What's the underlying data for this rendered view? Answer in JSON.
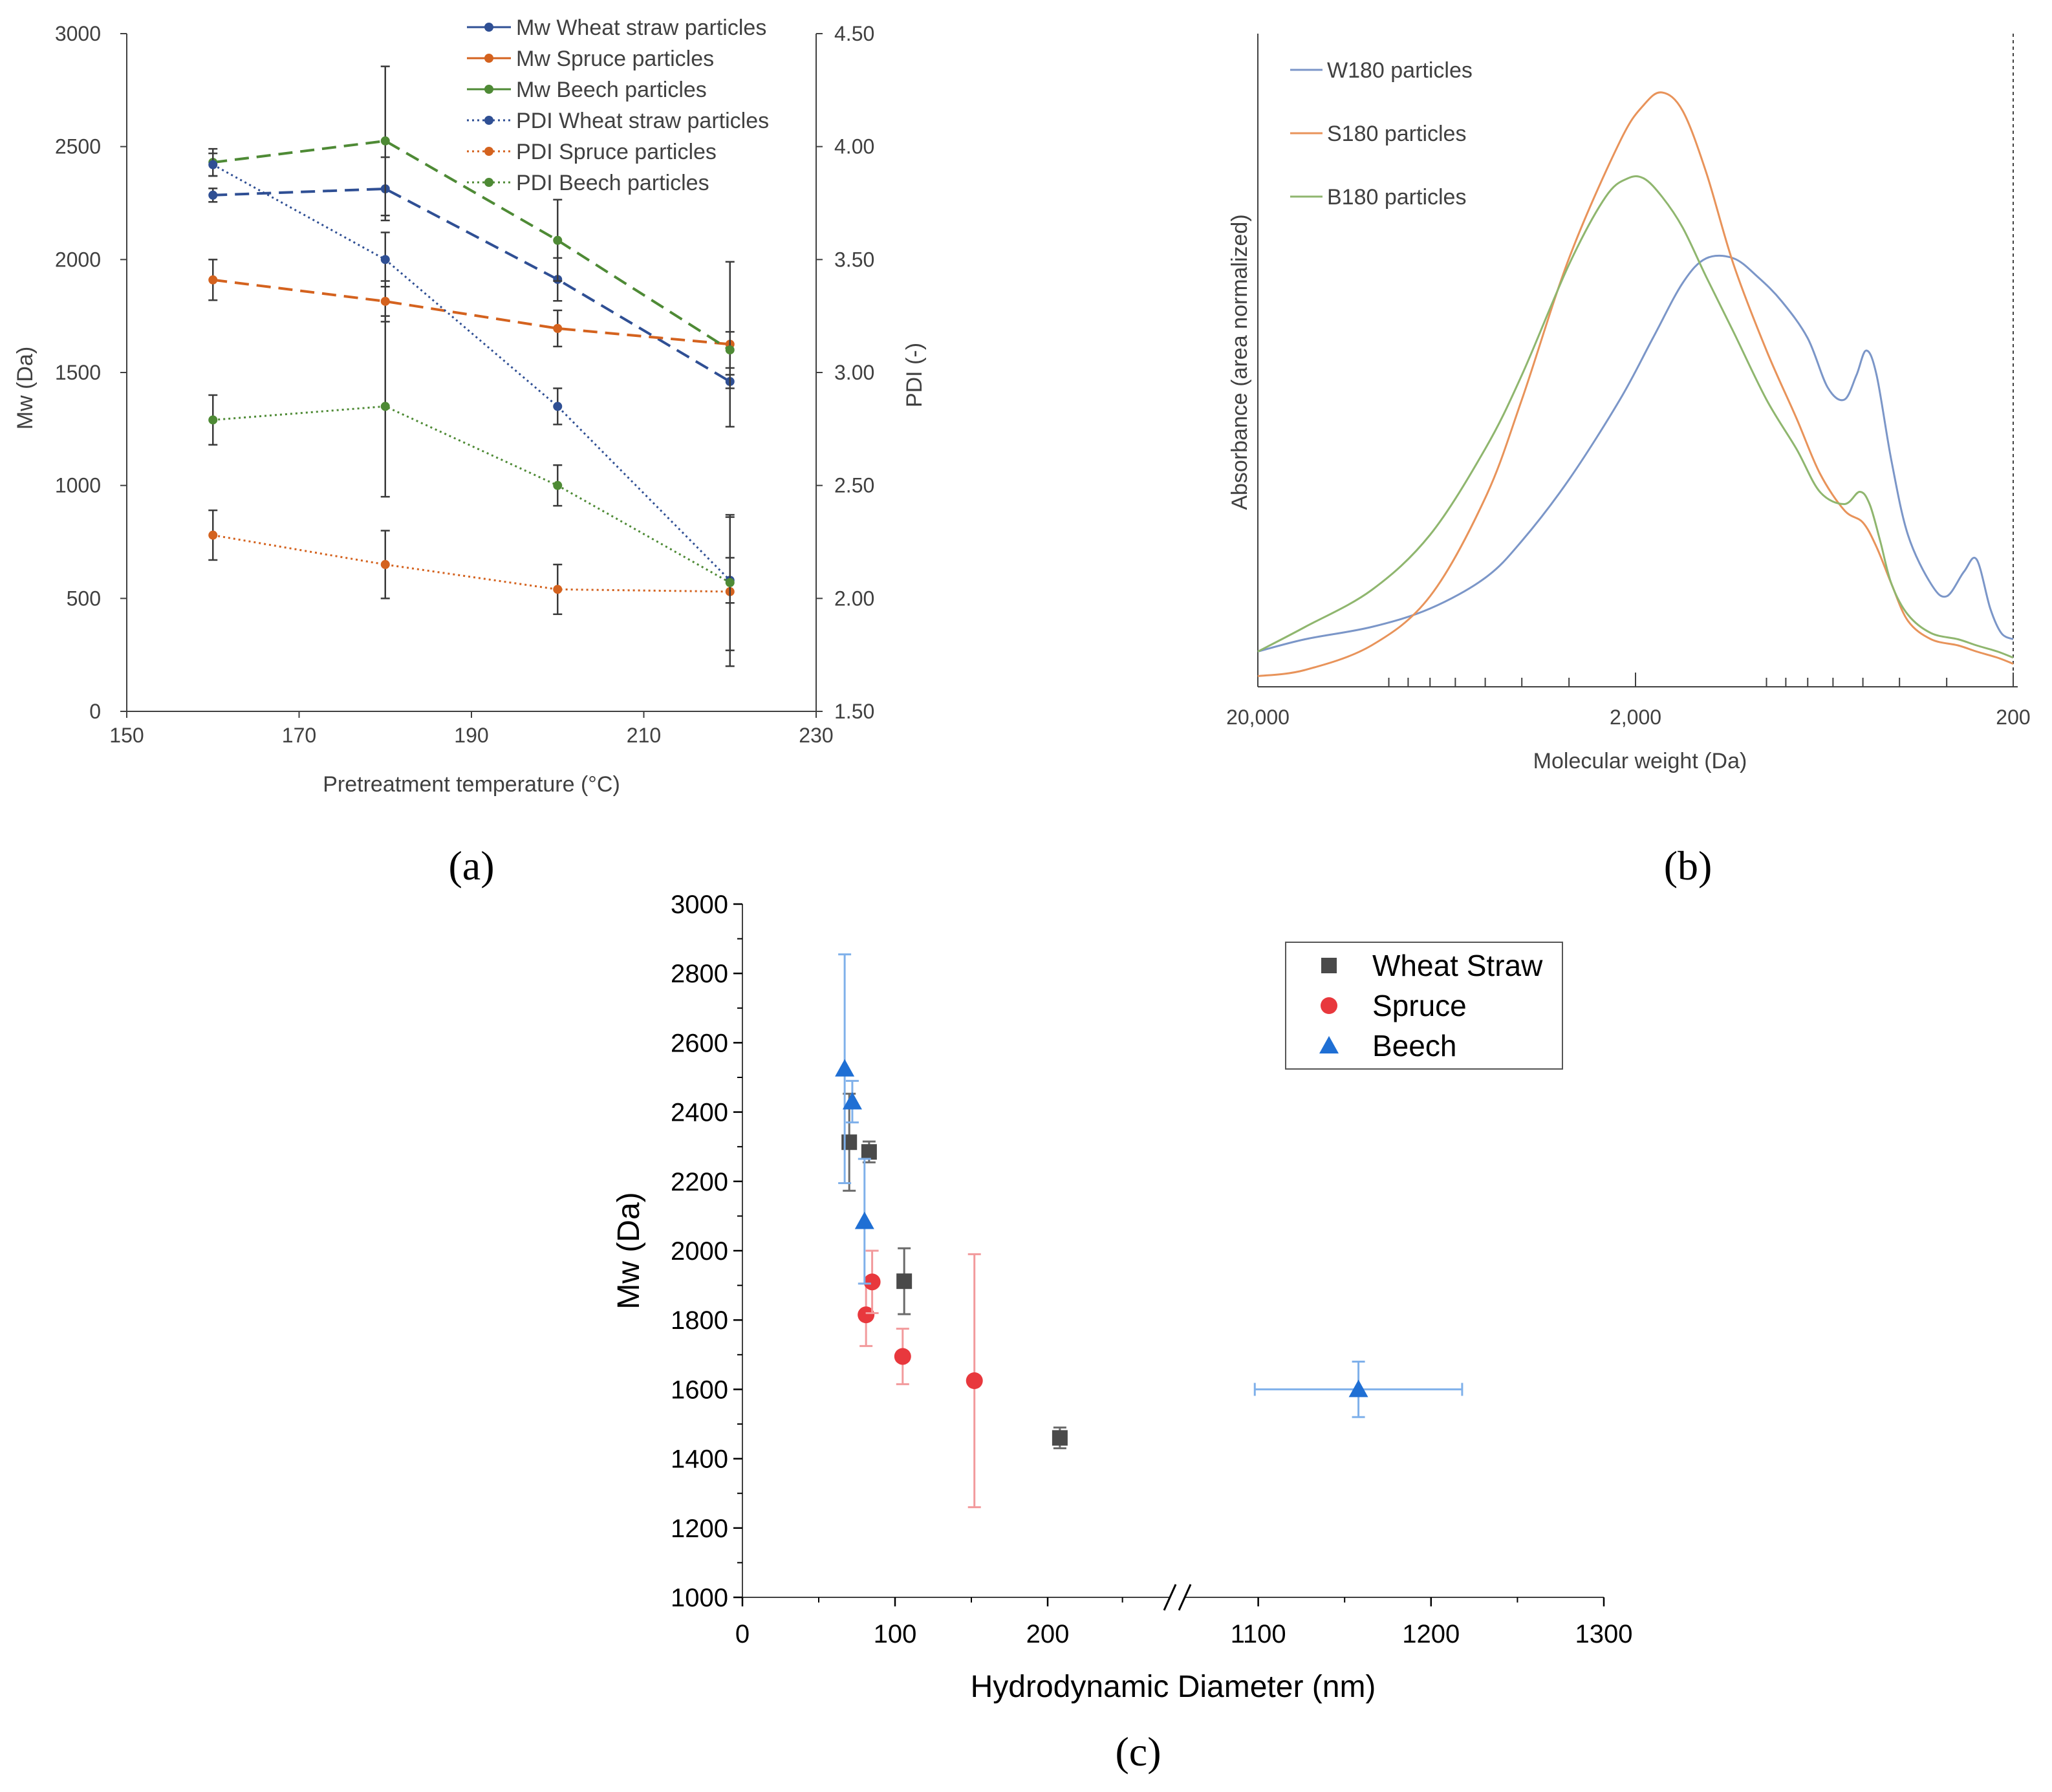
{
  "chart_data": [
    {
      "id": "a",
      "type": "line",
      "panel_label": "(a)",
      "xlabel": "Pretreatment temperature (°C)",
      "ylabel": "Mw (Da)",
      "y2label": "PDI (-)",
      "xlim": [
        150,
        230
      ],
      "ylim": [
        0,
        3000
      ],
      "y2lim": [
        1.5,
        4.5
      ],
      "x_ticks": [
        150,
        170,
        190,
        210,
        230
      ],
      "y_ticks": [
        0,
        500,
        1000,
        1500,
        2000,
        2500,
        3000
      ],
      "y2_ticks": [
        "1.50",
        "2.00",
        "2.50",
        "3.00",
        "3.50",
        "4.00",
        "4.50"
      ],
      "colors": {
        "wheat": "#2f4f94",
        "spruce": "#d4621e",
        "beech": "#4e8a35"
      },
      "series": [
        {
          "name": "Mw Wheat straw particles",
          "axis": "left",
          "style": "dashed",
          "color_key": "wheat",
          "x": [
            160,
            180,
            200,
            220
          ],
          "values": [
            2285,
            2313,
            1912,
            1460
          ],
          "err": [
            30,
            140,
            95,
            30
          ]
        },
        {
          "name": "Mw Spruce particles",
          "axis": "left",
          "style": "dashed",
          "color_key": "spruce",
          "x": [
            160,
            180,
            200,
            220
          ],
          "values": [
            1910,
            1815,
            1695,
            1625
          ],
          "err": [
            90,
            90,
            80,
            365
          ]
        },
        {
          "name": "Mw Beech particles",
          "axis": "left",
          "style": "dashed",
          "color_key": "beech",
          "x": [
            160,
            180,
            200,
            220
          ],
          "values": [
            2430,
            2525,
            2085,
            1600
          ],
          "err": [
            60,
            330,
            180,
            80
          ]
        },
        {
          "name": "PDI Wheat straw particles",
          "axis": "right",
          "style": "dotted",
          "color_key": "wheat",
          "x": [
            160,
            180,
            200,
            220
          ],
          "values": [
            3.92,
            3.5,
            2.85,
            2.08
          ],
          "err": [
            0.05,
            0.12,
            0.08,
            0.1
          ]
        },
        {
          "name": "PDI Spruce particles",
          "axis": "right",
          "style": "dotted",
          "color_key": "spruce",
          "x": [
            160,
            180,
            200,
            220
          ],
          "values": [
            2.28,
            2.15,
            2.04,
            2.03
          ],
          "err": [
            0.11,
            0.15,
            0.11,
            0.33
          ]
        },
        {
          "name": "PDI Beech particles",
          "axis": "right",
          "style": "dotted",
          "color_key": "beech",
          "x": [
            160,
            180,
            200,
            220
          ],
          "values": [
            2.79,
            2.85,
            2.5,
            2.07
          ],
          "err": [
            0.11,
            0.4,
            0.09,
            0.3
          ]
        }
      ]
    },
    {
      "id": "b",
      "type": "line",
      "panel_label": "(b)",
      "xlabel": "Molecular weight (Da)",
      "ylabel": "Absorbance (area normalized)",
      "x_scale": "log, reversed",
      "xlim": [
        20000,
        200
      ],
      "ylim": [
        0,
        1
      ],
      "x_ticks": [
        "20,000",
        "2,000",
        "200"
      ],
      "colors": {
        "W180": "#7b96c8",
        "S180": "#e8935a",
        "B180": "#8fb66e"
      },
      "series": [
        {
          "name": "W180 particles",
          "color_key": "W180",
          "x": [
            20000,
            15000,
            10000,
            7000,
            5000,
            4000,
            3000,
            2200,
            1800,
            1500,
            1300,
            1100,
            950,
            820,
            700,
            620,
            560,
            520,
            490,
            460,
            420,
            380,
            330,
            300,
            270,
            250,
            230,
            215,
            200
          ],
          "values": [
            0.05,
            0.07,
            0.09,
            0.12,
            0.17,
            0.23,
            0.33,
            0.46,
            0.56,
            0.65,
            0.69,
            0.69,
            0.66,
            0.62,
            0.56,
            0.48,
            0.46,
            0.5,
            0.54,
            0.5,
            0.36,
            0.24,
            0.16,
            0.14,
            0.18,
            0.2,
            0.12,
            0.08,
            0.07
          ]
        },
        {
          "name": "S180 particles",
          "color_key": "S180",
          "x": [
            20000,
            15000,
            10000,
            7000,
            5000,
            4000,
            3000,
            2200,
            1900,
            1700,
            1500,
            1300,
            1100,
            900,
            750,
            650,
            560,
            500,
            460,
            420,
            380,
            330,
            280,
            250,
            220,
            200
          ],
          "values": [
            0.01,
            0.02,
            0.06,
            0.14,
            0.3,
            0.46,
            0.69,
            0.88,
            0.94,
            0.96,
            0.93,
            0.83,
            0.68,
            0.54,
            0.43,
            0.34,
            0.28,
            0.26,
            0.22,
            0.16,
            0.1,
            0.07,
            0.06,
            0.05,
            0.04,
            0.03
          ]
        },
        {
          "name": "B180 particles",
          "color_key": "B180",
          "x": [
            20000,
            15000,
            10000,
            7000,
            5000,
            4000,
            3000,
            2400,
            2100,
            1900,
            1700,
            1500,
            1300,
            1100,
            900,
            750,
            650,
            560,
            510,
            480,
            450,
            420,
            380,
            330,
            280,
            250,
            220,
            200
          ],
          "values": [
            0.05,
            0.09,
            0.15,
            0.24,
            0.38,
            0.5,
            0.68,
            0.79,
            0.82,
            0.82,
            0.79,
            0.74,
            0.66,
            0.57,
            0.46,
            0.38,
            0.31,
            0.29,
            0.31,
            0.29,
            0.23,
            0.16,
            0.11,
            0.08,
            0.07,
            0.06,
            0.05,
            0.04
          ]
        }
      ]
    },
    {
      "id": "c",
      "type": "scatter",
      "panel_label": "(c)",
      "xlabel": "Hydrodynamic Diameter (nm)",
      "ylabel": "Mw (Da)",
      "x_axis_break": [
        250,
        1050
      ],
      "xlim": [
        0,
        1300
      ],
      "ylim": [
        1000,
        3000
      ],
      "x_ticks": [
        "0",
        "100",
        "200",
        "1100",
        "1200",
        "1300"
      ],
      "y_ticks": [
        1000,
        1200,
        1400,
        1600,
        1800,
        2000,
        2200,
        2400,
        2600,
        2800,
        3000
      ],
      "colors": {
        "Wheat Straw": "#4a4a4a",
        "Spruce": "#e8383d",
        "Beech": "#1f6fd4"
      },
      "series": [
        {
          "name": "Wheat Straw",
          "marker": "square",
          "x": [
            70,
            83,
            106,
            208
          ],
          "values": [
            2313,
            2285,
            1912,
            1460
          ],
          "yerr": [
            140,
            30,
            95,
            30
          ],
          "xerr": [
            3,
            3,
            3,
            3
          ]
        },
        {
          "name": "Spruce",
          "marker": "circle",
          "x": [
            81,
            85,
            105,
            152
          ],
          "values": [
            1815,
            1910,
            1695,
            1625
          ],
          "yerr": [
            90,
            90,
            80,
            365
          ],
          "xerr": [
            3,
            3,
            3,
            3
          ]
        },
        {
          "name": "Beech",
          "marker": "triangle",
          "x": [
            67,
            72,
            80,
            1158
          ],
          "values": [
            2525,
            2430,
            2085,
            1600
          ],
          "yerr": [
            330,
            60,
            180,
            80
          ],
          "xerr": [
            3,
            3,
            3,
            60
          ]
        }
      ]
    }
  ]
}
